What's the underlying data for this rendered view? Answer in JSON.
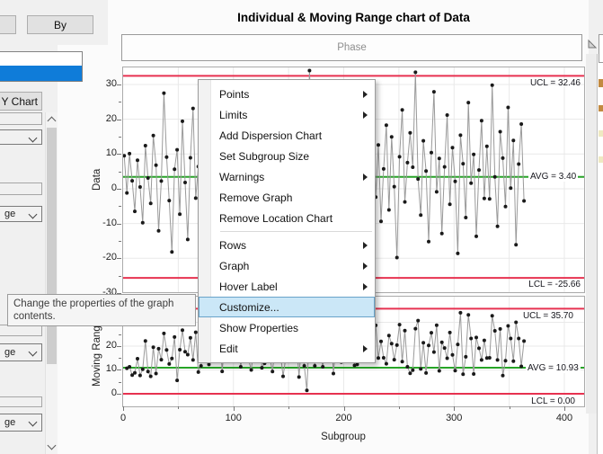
{
  "window": {
    "title": "Individual & Moving Range chart of Data"
  },
  "left_panel": {
    "by_button": "By",
    "y_chart_button": "w Y Chart",
    "dropdown_2_value": "ge",
    "dropdown_3_value": "ge",
    "dropdown_4_value": "ge"
  },
  "phase_label": "Phase",
  "tooltip": {
    "line1": "Change the properties of the graph",
    "line2": "contents."
  },
  "menu": {
    "items": [
      {
        "label": "Points",
        "submenu": true
      },
      {
        "label": "Limits",
        "submenu": true
      },
      {
        "label": "Add Dispersion Chart",
        "submenu": false
      },
      {
        "label": "Set Subgroup Size",
        "submenu": false
      },
      {
        "label": "Warnings",
        "submenu": true
      },
      {
        "label": "Remove Graph",
        "submenu": false
      },
      {
        "label": "Remove Location Chart",
        "submenu": false
      },
      {
        "label": "Rows",
        "submenu": true
      },
      {
        "label": "Graph",
        "submenu": true
      },
      {
        "label": "Hover Label",
        "submenu": true
      },
      {
        "label": "Customize...",
        "submenu": false,
        "highlighted": true
      },
      {
        "label": "Show Properties",
        "submenu": false
      },
      {
        "label": "Edit",
        "submenu": true
      }
    ]
  },
  "right_edge": {
    "swatches": [
      "#c28a41",
      "#c28a41",
      "#efe9c2",
      "#efe9c2"
    ]
  },
  "chart_data": {
    "type": "line",
    "title": "Individual & Moving Range chart of Data",
    "xlabel": "Subgroup",
    "x_ticks": [
      0,
      100,
      200,
      300,
      400
    ],
    "x_minor_ticks": [
      50,
      150,
      250,
      350
    ],
    "xlim": [
      0,
      418
    ],
    "x_start": 1,
    "x_step": 2.4,
    "grid": true,
    "point_color": "#1a1a1a",
    "line_color": "#9a9a9a",
    "limit_color": "#e73250",
    "center_color": "#27a427",
    "panels": [
      {
        "name": "Individual",
        "ylabel": "Data",
        "y_ticks": [
          30,
          20,
          10,
          0,
          -10,
          -20,
          -30
        ],
        "y_minor_ticks": [
          -25,
          -15,
          -5,
          5,
          15,
          25
        ],
        "ylim": [
          -29.7,
          34.9
        ],
        "ucl": 32.46,
        "avg": 3.4,
        "lcl": -25.66,
        "ucl_label": "UCL = 32.46",
        "avg_label": "AVG = 3.40",
        "lcl_label": "LCL = -25.66"
      },
      {
        "name": "Moving Range",
        "ylabel": "Moving Range(",
        "y_ticks": [
          30,
          20,
          10,
          0
        ],
        "y_minor_ticks": [
          5,
          15,
          25,
          35
        ],
        "ylim": [
          -5.3,
          40.75
        ],
        "ucl": 35.7,
        "avg": 10.93,
        "lcl": 0,
        "ucl_label": "UCL = 35.70",
        "avg_label": "AVG = 10.93",
        "lcl_label": "LCL = 0.00"
      }
    ],
    "values": [
      9.5,
      -1.2,
      10.1,
      2.3,
      -6.5,
      8.2,
      0.5,
      -9.8,
      12.4,
      3.1,
      -4.2,
      15.3,
      6.8,
      -12.1,
      2.2,
      27.5,
      9.1,
      -3.4,
      -18.2,
      5.6,
      11.2,
      -7.3,
      19.4,
      1.8,
      -14.6,
      8.9,
      23.1,
      -2.7,
      6.4,
      -5.3,
      26.8,
      4.2,
      -8.1,
      14.5,
      0.3,
      -20.4,
      7.8,
      17.2,
      -5.6,
      10.9,
      -15.8,
      3.7,
      21.6,
      -1.9,
      9.4,
      -11.2,
      16.8,
      2.6,
      -7.4,
      13.1,
      28.2,
      -4.8,
      6.1,
      18.9,
      -13.5,
      1.4,
      10.7,
      -9.1,
      22.3,
      5.2,
      -2.1,
      12.8,
      -17.3,
      7.4,
      25.1,
      0.8,
      -6.2,
      15.6,
      3.9,
      5.3,
      34.0,
      8.6,
      -3.1,
      19.7,
      2.4,
      -8.9,
      11.3,
      29.4,
      -1.6,
      6.9,
      -14.2,
      4.5,
      17.8,
      -5.3,
      9.8,
      24.6,
      -10.7,
      1.2,
      13.5,
      -7.8,
      20.4,
      3.2,
      -16.5,
      8.1,
      26.3,
      -2.4,
      12.6,
      -9.4,
      5.7,
      18.3,
      -6.1,
      14.9,
      0.6,
      -19.8,
      9.2,
      22.7,
      -3.8,
      7.5,
      16.1,
      6.2,
      33.5,
      2.8,
      -7.6,
      13.8,
      5.1,
      -15.2,
      10.4,
      27.9,
      -0.9,
      8.7,
      -12.9,
      6.3,
      21.2,
      -4.5,
      11.8,
      2.1,
      -18.6,
      15.4,
      7.2,
      -8.3,
      24.8,
      1.6,
      9.9,
      -13.7,
      5.4,
      19.6,
      -2.8,
      12.2,
      -2.9,
      29.8,
      3.4,
      -10.8,
      16.4,
      8.8,
      -5.1,
      23.4,
      0.2,
      13.9,
      -16.1,
      7.1,
      18.6,
      -3.5
    ]
  }
}
